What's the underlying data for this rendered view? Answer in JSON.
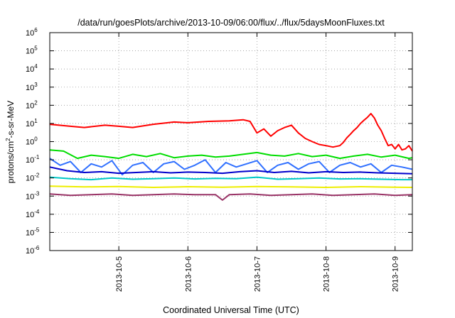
{
  "chart_data": {
    "type": "line",
    "title": "/data/run/goesPlots/archive/2013-10-09/06:00/flux/../flux/5daysMoonFluxes.txt",
    "xlabel": "Coordinated Universal Time (UTC)",
    "ylabel": {
      "prefix": "protons/cm",
      "superscript": "2",
      "suffix": "-s-sr-MeV"
    },
    "yscale": "log",
    "ylim": [
      1e-06,
      1000000.0
    ],
    "yticks": [
      {
        "base": "10",
        "exp": "-6"
      },
      {
        "base": "10",
        "exp": "-5"
      },
      {
        "base": "10",
        "exp": "-4"
      },
      {
        "base": "10",
        "exp": "-3"
      },
      {
        "base": "10",
        "exp": "-2"
      },
      {
        "base": "10",
        "exp": "-1"
      },
      {
        "base": "10",
        "exp": "0"
      },
      {
        "base": "10",
        "exp": "1"
      },
      {
        "base": "10",
        "exp": "2"
      },
      {
        "base": "10",
        "exp": "3"
      },
      {
        "base": "10",
        "exp": "4"
      },
      {
        "base": "10",
        "exp": "5"
      },
      {
        "base": "10",
        "exp": "6"
      }
    ],
    "xlim": [
      "2013-10-04 00:00",
      "2013-10-09 06:00"
    ],
    "xticks": [
      "2013-10-5",
      "2013-10-6",
      "2013-10-7",
      "2013-10-8",
      "2013-10-9"
    ],
    "grid": true,
    "series": [
      {
        "color": "#ff0000",
        "x": [
          0,
          0.3,
          0.5,
          0.8,
          1.0,
          1.2,
          1.5,
          1.8,
          2.0,
          2.3,
          2.6,
          2.8,
          2.9,
          3.0,
          3.1,
          3.2,
          3.3,
          3.4,
          3.5,
          3.6,
          3.7,
          3.8,
          3.9,
          4.0,
          4.1,
          4.2,
          4.25,
          4.3,
          4.35,
          4.4,
          4.45,
          4.5,
          4.55,
          4.6,
          4.65,
          4.7,
          4.75,
          4.8,
          4.85,
          4.9,
          4.95,
          5.0,
          5.05,
          5.1,
          5.15,
          5.2,
          5.25
        ],
        "y": [
          9,
          7,
          6,
          8,
          7,
          6,
          9,
          12,
          11,
          13,
          14,
          16,
          13,
          3,
          5,
          2,
          4,
          6,
          8,
          3,
          1.5,
          1,
          0.7,
          0.6,
          0.5,
          0.6,
          0.9,
          1.6,
          2.5,
          4,
          6,
          10,
          15,
          22,
          35,
          20,
          8,
          4,
          1.5,
          0.6,
          0.7,
          0.4,
          0.7,
          0.35,
          0.4,
          0.6,
          0.3
        ]
      },
      {
        "color": "#00dd00",
        "x": [
          0,
          0.2,
          0.4,
          0.6,
          0.8,
          1.0,
          1.2,
          1.4,
          1.6,
          1.8,
          2.0,
          2.2,
          2.4,
          2.6,
          2.8,
          3.0,
          3.2,
          3.4,
          3.6,
          3.8,
          4.0,
          4.2,
          4.4,
          4.6,
          4.8,
          5.0,
          5.2,
          5.25
        ],
        "y": [
          0.35,
          0.3,
          0.12,
          0.18,
          0.15,
          0.12,
          0.2,
          0.15,
          0.22,
          0.13,
          0.16,
          0.18,
          0.14,
          0.16,
          0.2,
          0.25,
          0.18,
          0.16,
          0.22,
          0.15,
          0.18,
          0.12,
          0.16,
          0.2,
          0.14,
          0.18,
          0.12,
          0.13
        ]
      },
      {
        "color": "#3070ff",
        "x": [
          0,
          0.15,
          0.3,
          0.45,
          0.6,
          0.75,
          0.9,
          1.05,
          1.2,
          1.35,
          1.5,
          1.65,
          1.8,
          1.95,
          2.1,
          2.25,
          2.4,
          2.55,
          2.7,
          2.85,
          3.0,
          3.15,
          3.3,
          3.45,
          3.6,
          3.75,
          3.9,
          4.05,
          4.2,
          4.35,
          4.5,
          4.65,
          4.8,
          4.95,
          5.1,
          5.25
        ],
        "y": [
          0.12,
          0.05,
          0.08,
          0.02,
          0.06,
          0.04,
          0.09,
          0.015,
          0.05,
          0.07,
          0.02,
          0.06,
          0.08,
          0.03,
          0.05,
          0.1,
          0.02,
          0.07,
          0.04,
          0.06,
          0.09,
          0.02,
          0.05,
          0.07,
          0.03,
          0.06,
          0.08,
          0.02,
          0.05,
          0.07,
          0.04,
          0.06,
          0.02,
          0.05,
          0.04,
          0.03
        ]
      },
      {
        "color": "#0000cc",
        "x": [
          0,
          0.25,
          0.5,
          0.75,
          1.0,
          1.25,
          1.5,
          1.75,
          2.0,
          2.25,
          2.5,
          2.75,
          3.0,
          3.25,
          3.5,
          3.75,
          4.0,
          4.25,
          4.5,
          4.75,
          5.0,
          5.25
        ],
        "y": [
          0.04,
          0.025,
          0.02,
          0.022,
          0.018,
          0.02,
          0.022,
          0.019,
          0.021,
          0.02,
          0.018,
          0.022,
          0.025,
          0.02,
          0.023,
          0.019,
          0.022,
          0.02,
          0.021,
          0.019,
          0.018,
          0.017
        ]
      },
      {
        "color": "#00c8c8",
        "x": [
          0,
          0.3,
          0.6,
          0.9,
          1.2,
          1.5,
          1.8,
          2.1,
          2.4,
          2.7,
          3.0,
          3.3,
          3.6,
          3.9,
          4.2,
          4.5,
          4.8,
          5.1,
          5.25
        ],
        "y": [
          0.011,
          0.009,
          0.008,
          0.01,
          0.0085,
          0.009,
          0.01,
          0.0088,
          0.0095,
          0.009,
          0.011,
          0.0085,
          0.009,
          0.01,
          0.0088,
          0.009,
          0.0085,
          0.008,
          0.008
        ]
      },
      {
        "color": "#eeee00",
        "x": [
          0,
          0.5,
          1.0,
          1.5,
          2.0,
          2.5,
          3.0,
          3.5,
          4.0,
          4.5,
          5.0,
          5.25
        ],
        "y": [
          0.0035,
          0.0032,
          0.0034,
          0.003,
          0.0033,
          0.0031,
          0.0034,
          0.0032,
          0.003,
          0.0033,
          0.0031,
          0.003
        ]
      },
      {
        "color": "#993366",
        "x": [
          0,
          0.3,
          0.6,
          0.9,
          1.2,
          1.5,
          1.8,
          2.1,
          2.4,
          2.5,
          2.6,
          2.9,
          3.2,
          3.5,
          3.8,
          4.1,
          4.4,
          4.7,
          5.0,
          5.25
        ],
        "y": [
          0.0013,
          0.0011,
          0.0012,
          0.0013,
          0.0011,
          0.0012,
          0.0013,
          0.0012,
          0.0012,
          0.0006,
          0.0012,
          0.0013,
          0.0011,
          0.0012,
          0.0013,
          0.0011,
          0.0012,
          0.0013,
          0.0011,
          0.0012
        ]
      }
    ]
  }
}
